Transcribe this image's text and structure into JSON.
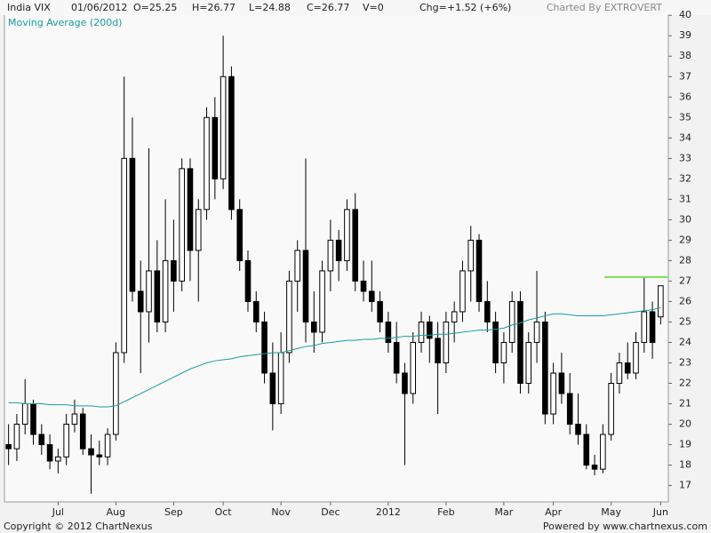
{
  "chart_data": {
    "type": "candlestick",
    "title": "India VIX",
    "header": [
      "01/06/2012",
      "O=25.25",
      "H=26.77",
      "L=24.88",
      "C=26.77",
      "V=0",
      "Chg=+1.52 (+6%)"
    ],
    "credit": "Charted By EXTROVERT",
    "footer": [
      "Copyright © 2012 ChartNexus",
      "Powered by www.chartnexus.com"
    ],
    "categories": [
      null,
      null,
      null,
      null,
      null,
      null,
      "Jul",
      null,
      null,
      null,
      null,
      null,
      null,
      "Aug",
      null,
      null,
      null,
      null,
      null,
      null,
      "Sep",
      null,
      null,
      null,
      null,
      null,
      "Oct",
      null,
      null,
      null,
      null,
      null,
      null,
      "Nov",
      null,
      null,
      null,
      null,
      null,
      "Dec",
      null,
      null,
      null,
      null,
      null,
      null,
      "2012",
      null,
      null,
      null,
      null,
      null,
      null,
      "Feb",
      null,
      null,
      null,
      null,
      null,
      null,
      "Mar",
      null,
      null,
      null,
      null,
      null,
      "Apr",
      null,
      null,
      null,
      null,
      null,
      null,
      "May",
      null,
      null,
      null,
      null,
      null,
      "Jun"
    ],
    "open": [
      19,
      18.8,
      20,
      21,
      19.5,
      19,
      18.2,
      18.4,
      20,
      20.5,
      18.8,
      18.5,
      18.4,
      19.5,
      23.5,
      33,
      26.5,
      25.5,
      27.5,
      25,
      28,
      27,
      32.5,
      28.5,
      30.5,
      35,
      32,
      37,
      30.5,
      28,
      26,
      25,
      22.5,
      21,
      23.5,
      27,
      28.5,
      25,
      24.5,
      27.5,
      29,
      28,
      30.5,
      27,
      26.5,
      26,
      25,
      24,
      22.5,
      21.5,
      24,
      25,
      24.2,
      23,
      25,
      25.5,
      27.5,
      29,
      26,
      25,
      23,
      24,
      26,
      22,
      24,
      25,
      20.5,
      22.5,
      21.5,
      20,
      19.5,
      18,
      17.8,
      19.5,
      22,
      23,
      22.5,
      24,
      25.5,
      25.25
    ],
    "high": [
      20,
      20.5,
      22.2,
      21.2,
      20,
      19.5,
      18.8,
      20.5,
      21.2,
      20.8,
      19.5,
      19.2,
      19.8,
      24,
      37,
      35,
      28,
      33.5,
      29,
      31,
      30,
      33,
      33,
      31,
      35.5,
      36,
      39,
      37.5,
      31,
      28.5,
      26.5,
      25.5,
      24,
      24.5,
      27.5,
      29,
      33,
      26.5,
      28,
      30,
      29.5,
      31,
      31.3,
      28,
      28,
      26.5,
      25.5,
      25,
      23,
      24.5,
      25.5,
      25.3,
      25,
      25.5,
      26,
      28,
      29.7,
      29.3,
      27,
      25.5,
      24.5,
      26.5,
      26.5,
      24.5,
      27.5,
      25.5,
      23,
      23.5,
      22.5,
      21.5,
      20,
      18.5,
      20,
      22.5,
      23.5,
      24,
      24.5,
      27.2,
      26,
      26.77
    ],
    "low": [
      18,
      18.2,
      19.5,
      19,
      18.5,
      17.8,
      17.6,
      18,
      19.6,
      18.5,
      16.6,
      18,
      18,
      19.2,
      23,
      26,
      22.5,
      24,
      24.5,
      24.5,
      25.5,
      26.5,
      27,
      26,
      30,
      31,
      31.5,
      30,
      27.5,
      25.5,
      24.5,
      22,
      19.7,
      20.5,
      23,
      25.5,
      24,
      23.5,
      24,
      26.5,
      27,
      27.5,
      26.5,
      26,
      25.5,
      24.5,
      23.5,
      22,
      18,
      21,
      23.5,
      23,
      20.5,
      22.5,
      24,
      25,
      26,
      25.5,
      24.5,
      22.5,
      22,
      23.5,
      21.5,
      21.5,
      23,
      20,
      20,
      21,
      19.5,
      19,
      17.8,
      17.5,
      17.6,
      19.2,
      21.5,
      22.2,
      22.2,
      23.5,
      23.2,
      24.88
    ],
    "close": [
      18.8,
      20,
      21,
      19.5,
      19,
      18.2,
      18.4,
      20,
      20.5,
      18.8,
      18.5,
      18.4,
      19.5,
      23.5,
      33,
      26.5,
      25.5,
      27.5,
      25,
      28,
      27,
      32.5,
      28.5,
      30.5,
      35,
      32,
      37,
      30.5,
      28,
      26,
      25,
      22.5,
      21,
      23.5,
      27,
      28.5,
      25,
      24.5,
      27.5,
      29,
      28,
      30.5,
      27,
      26.5,
      26,
      25,
      24,
      22.5,
      21.5,
      24,
      25,
      24.2,
      23,
      25,
      25.5,
      27.5,
      29,
      26,
      25,
      23,
      24,
      26,
      22,
      24,
      25,
      20.5,
      22.5,
      21.5,
      20,
      19.5,
      18,
      17.8,
      19.5,
      22,
      23,
      22.5,
      24,
      25.5,
      24,
      26.77
    ],
    "color": "#000000",
    "overlay": {
      "name": "Moving Average (200d)",
      "color": "#1a9c9c",
      "values": [
        21.05,
        21.05,
        21.0,
        21.0,
        21.0,
        20.95,
        20.95,
        20.95,
        20.9,
        20.9,
        20.9,
        20.85,
        20.85,
        20.9,
        21.1,
        21.3,
        21.5,
        21.7,
        21.9,
        22.1,
        22.3,
        22.5,
        22.7,
        22.85,
        23.0,
        23.1,
        23.15,
        23.2,
        23.3,
        23.35,
        23.4,
        23.45,
        23.5,
        23.5,
        23.6,
        23.7,
        23.8,
        23.85,
        23.95,
        24.0,
        24.05,
        24.1,
        24.1,
        24.15,
        24.15,
        24.2,
        24.2,
        24.25,
        24.3,
        24.3,
        24.35,
        24.35,
        24.4,
        24.4,
        24.45,
        24.5,
        24.55,
        24.6,
        24.6,
        24.65,
        24.7,
        24.85,
        24.95,
        25.1,
        25.2,
        25.3,
        25.4,
        25.4,
        25.35,
        25.3,
        25.3,
        25.3,
        25.3,
        25.35,
        25.4,
        25.45,
        25.5,
        25.55,
        25.6,
        25.7
      ]
    },
    "reference_line": {
      "value": 27.2,
      "color": "#7ddc5a"
    },
    "ylim": [
      16.2,
      40.4
    ],
    "yticks": [
      17,
      18,
      19,
      20,
      21,
      22,
      23,
      24,
      25,
      26,
      27,
      28,
      29,
      30,
      31,
      32,
      33,
      34,
      35,
      36,
      37,
      38,
      39,
      40
    ]
  }
}
